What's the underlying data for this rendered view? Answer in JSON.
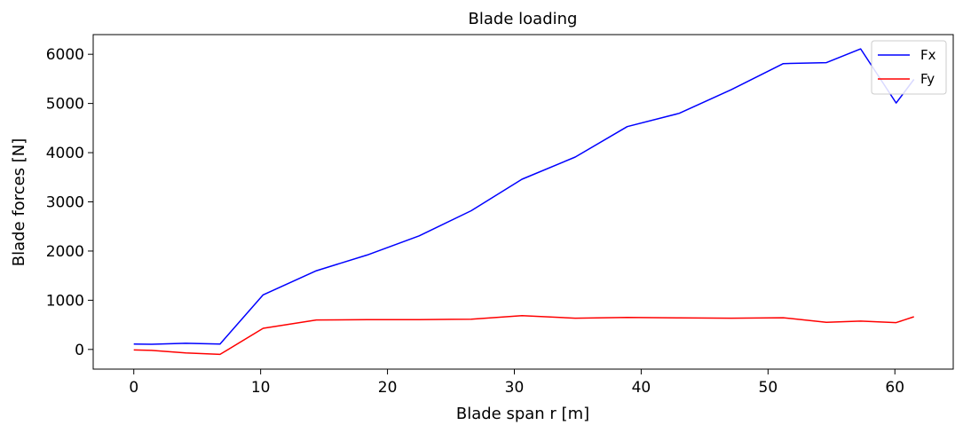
{
  "chart_data": {
    "type": "line",
    "title": "Blade loading",
    "xlabel": "Blade span r [m]",
    "ylabel": "Blade forces [N]",
    "xlim": [
      -3.2,
      64.6
    ],
    "ylim": [
      -400,
      6400
    ],
    "xticks": [
      0,
      10,
      20,
      30,
      40,
      50,
      60
    ],
    "yticks": [
      0,
      1000,
      2000,
      3000,
      4000,
      5000,
      6000
    ],
    "grid": false,
    "legend_position": "top-right",
    "series": [
      {
        "name": "Fx",
        "color": "#0000ff",
        "x": [
          0,
          1.4,
          4.1,
          6.8,
          10.2,
          14.4,
          18.4,
          22.5,
          26.6,
          30.6,
          34.8,
          38.9,
          43.0,
          47.1,
          51.2,
          54.6,
          57.3,
          60.1,
          61.5
        ],
        "values": [
          110,
          105,
          125,
          110,
          1110,
          1600,
          1920,
          2310,
          2820,
          3460,
          3910,
          4530,
          4800,
          5280,
          5810,
          5830,
          6110,
          5010,
          5490
        ]
      },
      {
        "name": "Fy",
        "color": "#ff0000",
        "x": [
          0,
          1.4,
          4.1,
          6.8,
          10.2,
          14.4,
          18.4,
          22.5,
          26.6,
          30.6,
          34.8,
          38.9,
          43.0,
          47.1,
          51.2,
          54.6,
          57.3,
          60.1,
          61.5
        ],
        "values": [
          -10,
          -20,
          -70,
          -100,
          430,
          600,
          605,
          605,
          615,
          685,
          635,
          650,
          640,
          635,
          645,
          550,
          575,
          545,
          665
        ]
      }
    ]
  }
}
